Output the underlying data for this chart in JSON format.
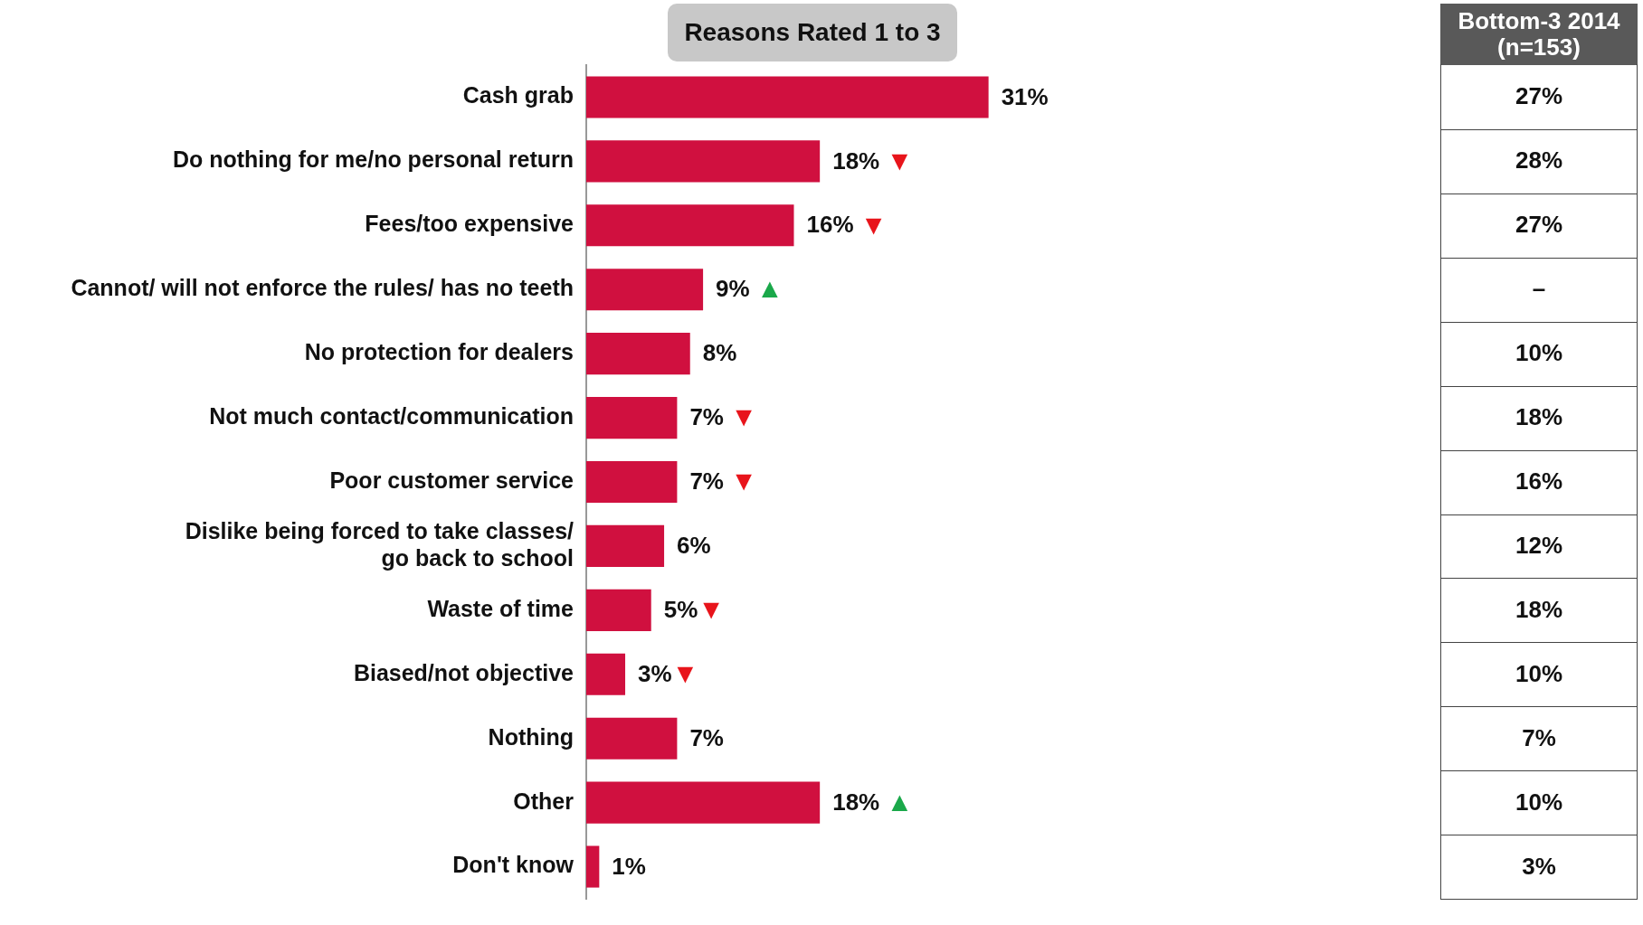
{
  "chart_data": [
    {
      "type": "bar",
      "orientation": "horizontal",
      "title": "Reasons Rated 1 to 3",
      "categories": [
        "Cash grab",
        "Do nothing for me/no personal return",
        "Fees/too expensive",
        "Cannot/ will not enforce the rules/ has no teeth",
        "No protection for dealers",
        "Not much contact/communication",
        "Poor customer service",
        "Dislike being forced to take classes/ go back to school",
        "Waste of time",
        "Biased/not objective",
        "Nothing",
        "Other",
        "Don't know"
      ],
      "values": [
        31,
        18,
        16,
        9,
        8,
        7,
        7,
        6,
        5,
        3,
        7,
        18,
        1
      ],
      "value_labels": [
        "31%",
        "18% ▼",
        "16% ▼",
        "9% ▲",
        "8%",
        "7% ▼",
        "7% ▼",
        "6%",
        "5%▼",
        "3%▼",
        "7%",
        "18% ▲",
        "1%"
      ],
      "color": "#d0103f",
      "tick_labels": "y",
      "grid": false,
      "legend": false
    },
    {
      "type": "other",
      "title": "Bottom-3 2014 (n=153)",
      "values": [
        27,
        28,
        27,
        null,
        10,
        18,
        16,
        12,
        18,
        10,
        7,
        10,
        3
      ],
      "value_labels": [
        "27%",
        "28%",
        "27%",
        "–",
        "10%",
        "18%",
        "16%",
        "12%",
        "18%",
        "10%",
        "7%",
        "10%",
        "3%"
      ]
    }
  ]
}
